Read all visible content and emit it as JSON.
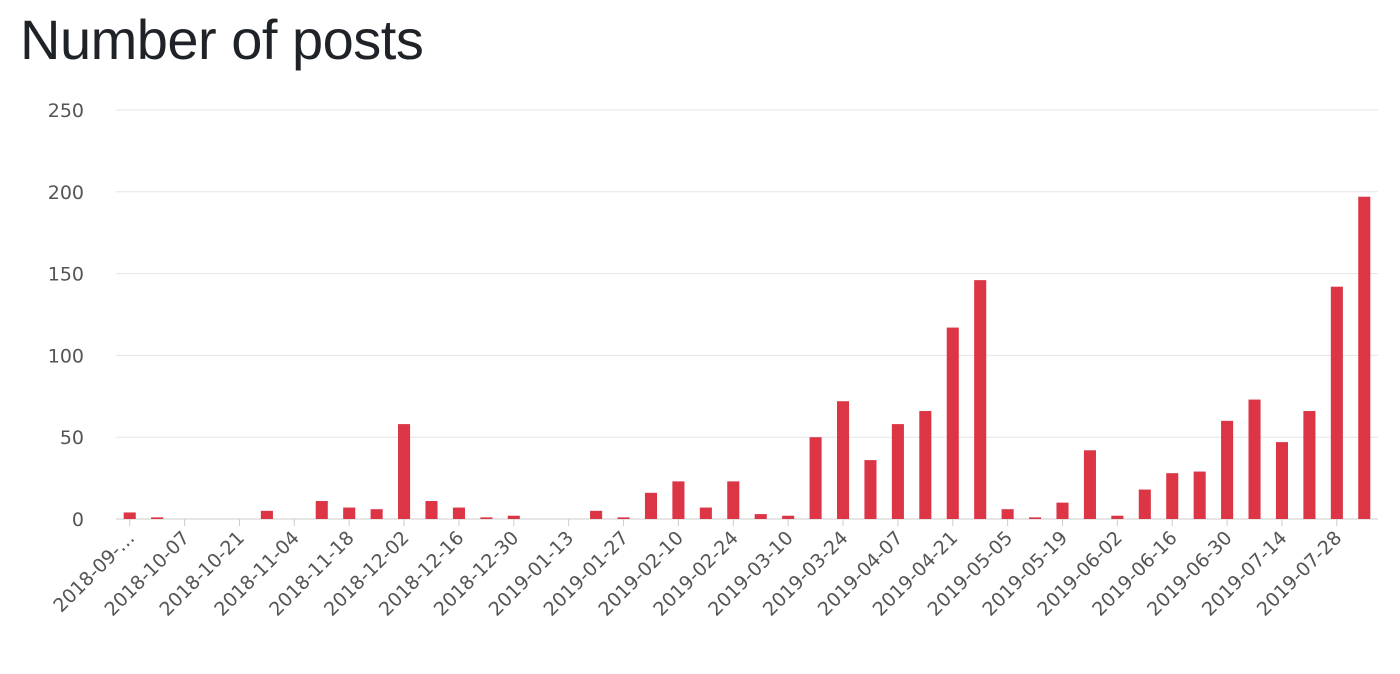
{
  "title": "Number of posts",
  "colors": {
    "bar": "#dc3545",
    "grid": "#e5e5e5",
    "axis": "#cccccc",
    "text": "#555555"
  },
  "chart_data": {
    "type": "bar",
    "title": "Number of posts",
    "xlabel": "",
    "ylabel": "",
    "ylim": [
      0,
      250
    ],
    "yticks": [
      0,
      50,
      100,
      150,
      200,
      250
    ],
    "grid": true,
    "legend": "none",
    "x_tick_labels": [
      "2018-09-…",
      "2018-10-07",
      "2018-10-21",
      "2018-11-04",
      "2018-11-18",
      "2018-12-02",
      "2018-12-16",
      "2018-12-30",
      "2019-01-13",
      "2019-01-27",
      "2019-02-10",
      "2019-02-24",
      "2019-03-10",
      "2019-03-24",
      "2019-04-07",
      "2019-04-21",
      "2019-05-05",
      "2019-05-19",
      "2019-06-02",
      "2019-06-16",
      "2019-06-30",
      "2019-07-14",
      "2019-07-28"
    ],
    "values": [
      4,
      1,
      0,
      0,
      0,
      5,
      0,
      11,
      7,
      6,
      58,
      11,
      7,
      1,
      2,
      0,
      0,
      5,
      1,
      16,
      23,
      7,
      23,
      3,
      2,
      50,
      72,
      36,
      58,
      66,
      117,
      146,
      6,
      1,
      10,
      42,
      2,
      18,
      28,
      29,
      60,
      73,
      47,
      66,
      142,
      197
    ]
  }
}
